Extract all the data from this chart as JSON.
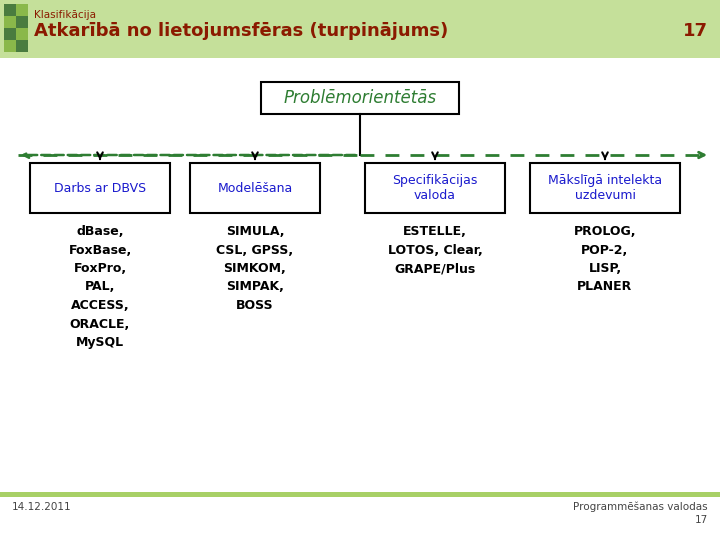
{
  "bg_color": "#ffffff",
  "header_bg": "#c5e09a",
  "header_green_dark": "#4a7c3f",
  "header_green_light": "#8ab84a",
  "header_title": "Klasifikācija",
  "header_subtitle": "Atkarībā no lietojumsfēras (turpinājums)",
  "header_number": "17",
  "header_text_color": "#8b1a00",
  "root_label": "Problēmorientētās",
  "root_color": "#2e7d32",
  "root_box_edge": "#000000",
  "branch_labels": [
    "Darbs ar DBVS",
    "Modelēšana",
    "Specifikācijas\nvaloda",
    "Mākslīgā intelekta\nuzdevumi"
  ],
  "branch_box_color": "#1a1acd",
  "branch_box_edge": "#000000",
  "branch_contents": [
    "dBase,\nFoxBase,\nFoxPro,\nPAL,\nACCESS,\nORACLE,\nMySQL",
    "SIMULA,\nCSL, GPSS,\nSIMKOM,\nSIMPAK,\nBOSS",
    "ESTELLE,\nLOTOS, Clear,\nGRAPE/Plus",
    "PROLOG,\nPOP-2,\nLISP,\nPLANER"
  ],
  "content_color": "#000000",
  "dashed_line_color": "#2e7d32",
  "footer_left": "14.12.2011",
  "footer_right": "Programmēšanas valodas",
  "footer_number": "17",
  "footer_bar_color": "#a8d066"
}
